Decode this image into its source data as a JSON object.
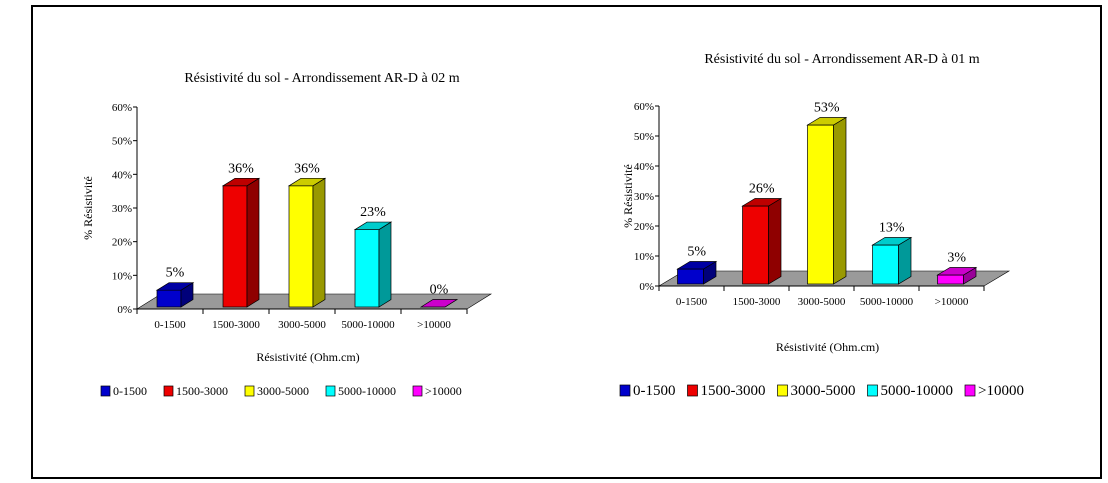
{
  "chart_data": [
    {
      "type": "bar",
      "title": "Résistivité du sol - Arrondissement AR-D à 02 m",
      "xlabel": "Résistivité (Ohm.cm)",
      "ylabel": "% Résistivité",
      "categories": [
        "0-1500",
        "1500-3000",
        "3000-5000",
        "5000-10000",
        ">10000"
      ],
      "values": [
        5,
        36,
        36,
        23,
        0
      ],
      "data_labels": [
        "5%",
        "36%",
        "36%",
        "23%",
        "0%"
      ],
      "y_ticks": [
        "0%",
        "10%",
        "20%",
        "30%",
        "40%",
        "50%",
        "60%"
      ],
      "ylim": [
        0,
        60
      ],
      "legend_position": "bottom",
      "grid": false
    },
    {
      "type": "bar",
      "title": "Résistivité du sol - Arrondissement AR-D  à 01 m",
      "xlabel": "Résistivité (Ohm.cm)",
      "ylabel": "% Résistivité",
      "categories": [
        "0-1500",
        "1500-3000",
        "3000-5000",
        "5000-10000",
        ">10000"
      ],
      "values": [
        5,
        26,
        53,
        13,
        3
      ],
      "data_labels": [
        "5%",
        "26%",
        "53%",
        "13%",
        "3%"
      ],
      "y_ticks": [
        "0%",
        "10%",
        "20%",
        "30%",
        "40%",
        "50%",
        "60%"
      ],
      "ylim": [
        0,
        60
      ],
      "legend_position": "bottom",
      "grid": false
    }
  ],
  "colors": [
    "#0000cc",
    "#ee0000",
    "#ffff00",
    "#00ffff",
    "#ff00ff"
  ],
  "floor_color": "#9a9a9a"
}
